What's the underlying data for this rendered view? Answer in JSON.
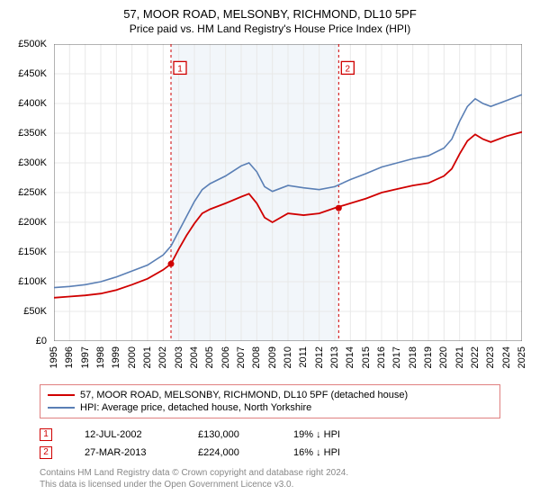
{
  "title_line1": "57, MOOR ROAD, MELSONBY, RICHMOND, DL10 5PF",
  "title_line2": "Price paid vs. HM Land Registry's House Price Index (HPI)",
  "chart": {
    "type": "line",
    "background_color": "#ffffff",
    "grid_color": "#e8e8e8",
    "shaded_band_color": "#f2f6fa",
    "shaded_band_x_start": 2002.5,
    "shaded_band_x_end": 2013.25,
    "axis_color": "#666666",
    "ylim": [
      0,
      500000
    ],
    "ytick_step": 50000,
    "y_tick_labels": [
      "£0",
      "£50K",
      "£100K",
      "£150K",
      "£200K",
      "£250K",
      "£300K",
      "£350K",
      "£400K",
      "£450K",
      "£500K"
    ],
    "xlim": [
      1995,
      2025
    ],
    "x_tick_labels": [
      "1995",
      "1996",
      "1997",
      "1998",
      "1999",
      "2000",
      "2001",
      "2002",
      "2003",
      "2004",
      "2005",
      "2006",
      "2007",
      "2008",
      "2009",
      "2010",
      "2011",
      "2012",
      "2013",
      "2014",
      "2015",
      "2016",
      "2017",
      "2018",
      "2019",
      "2020",
      "2021",
      "2022",
      "2023",
      "2024",
      "2025"
    ],
    "label_fontsize": 11,
    "series": [
      {
        "name": "HPI: Average price, detached house, North Yorkshire",
        "color": "#5a7fb5",
        "line_width": 1.6,
        "points": [
          [
            1995,
            90000
          ],
          [
            1996,
            92000
          ],
          [
            1997,
            95000
          ],
          [
            1998,
            100000
          ],
          [
            1999,
            108000
          ],
          [
            2000,
            118000
          ],
          [
            2001,
            128000
          ],
          [
            2002,
            145000
          ],
          [
            2002.5,
            160000
          ],
          [
            2003,
            185000
          ],
          [
            2003.5,
            210000
          ],
          [
            2004,
            235000
          ],
          [
            2004.5,
            255000
          ],
          [
            2005,
            265000
          ],
          [
            2006,
            278000
          ],
          [
            2007,
            295000
          ],
          [
            2007.5,
            300000
          ],
          [
            2008,
            285000
          ],
          [
            2008.5,
            260000
          ],
          [
            2009,
            252000
          ],
          [
            2010,
            262000
          ],
          [
            2011,
            258000
          ],
          [
            2012,
            255000
          ],
          [
            2013,
            260000
          ],
          [
            2014,
            272000
          ],
          [
            2015,
            282000
          ],
          [
            2016,
            293000
          ],
          [
            2017,
            300000
          ],
          [
            2018,
            307000
          ],
          [
            2019,
            312000
          ],
          [
            2020,
            325000
          ],
          [
            2020.5,
            340000
          ],
          [
            2021,
            370000
          ],
          [
            2021.5,
            395000
          ],
          [
            2022,
            408000
          ],
          [
            2022.5,
            400000
          ],
          [
            2023,
            395000
          ],
          [
            2024,
            405000
          ],
          [
            2025,
            415000
          ]
        ]
      },
      {
        "name": "57, MOOR ROAD, MELSONBY, RICHMOND, DL10 5PF (detached house)",
        "color": "#d00000",
        "line_width": 1.8,
        "points": [
          [
            1995,
            73000
          ],
          [
            1996,
            75000
          ],
          [
            1997,
            77000
          ],
          [
            1998,
            80000
          ],
          [
            1999,
            86000
          ],
          [
            2000,
            95000
          ],
          [
            2001,
            105000
          ],
          [
            2002,
            120000
          ],
          [
            2002.5,
            130000
          ],
          [
            2003,
            155000
          ],
          [
            2003.5,
            178000
          ],
          [
            2004,
            198000
          ],
          [
            2004.5,
            215000
          ],
          [
            2005,
            222000
          ],
          [
            2006,
            232000
          ],
          [
            2007,
            243000
          ],
          [
            2007.5,
            248000
          ],
          [
            2008,
            232000
          ],
          [
            2008.5,
            208000
          ],
          [
            2009,
            200000
          ],
          [
            2010,
            215000
          ],
          [
            2011,
            212000
          ],
          [
            2012,
            215000
          ],
          [
            2013,
            224000
          ],
          [
            2014,
            232000
          ],
          [
            2015,
            240000
          ],
          [
            2016,
            250000
          ],
          [
            2017,
            256000
          ],
          [
            2018,
            262000
          ],
          [
            2019,
            266000
          ],
          [
            2020,
            278000
          ],
          [
            2020.5,
            290000
          ],
          [
            2021,
            315000
          ],
          [
            2021.5,
            337000
          ],
          [
            2022,
            348000
          ],
          [
            2022.5,
            340000
          ],
          [
            2023,
            335000
          ],
          [
            2024,
            345000
          ],
          [
            2025,
            352000
          ]
        ]
      }
    ],
    "event_markers": [
      {
        "id": "1",
        "x": 2002.5,
        "y_flag": 460000,
        "point_y": 130000,
        "line_color": "#d00000"
      },
      {
        "id": "2",
        "x": 2013.25,
        "y_flag": 460000,
        "point_y": 224000,
        "line_color": "#d00000"
      }
    ],
    "marker_point_color": "#d00000",
    "marker_point_radius": 3.5,
    "marker_dash": "3,3"
  },
  "legend": {
    "border_color": "#e08080",
    "items": [
      {
        "color": "#d00000",
        "label": "57, MOOR ROAD, MELSONBY, RICHMOND, DL10 5PF (detached house)"
      },
      {
        "color": "#5a7fb5",
        "label": "HPI: Average price, detached house, North Yorkshire"
      }
    ]
  },
  "marker_table": {
    "rows": [
      {
        "id": "1",
        "date": "12-JUL-2002",
        "price": "£130,000",
        "pct": "19% ↓ HPI"
      },
      {
        "id": "2",
        "date": "27-MAR-2013",
        "price": "£224,000",
        "pct": "16% ↓ HPI"
      }
    ]
  },
  "footnote_line1": "Contains HM Land Registry data © Crown copyright and database right 2024.",
  "footnote_line2": "This data is licensed under the Open Government Licence v3.0."
}
